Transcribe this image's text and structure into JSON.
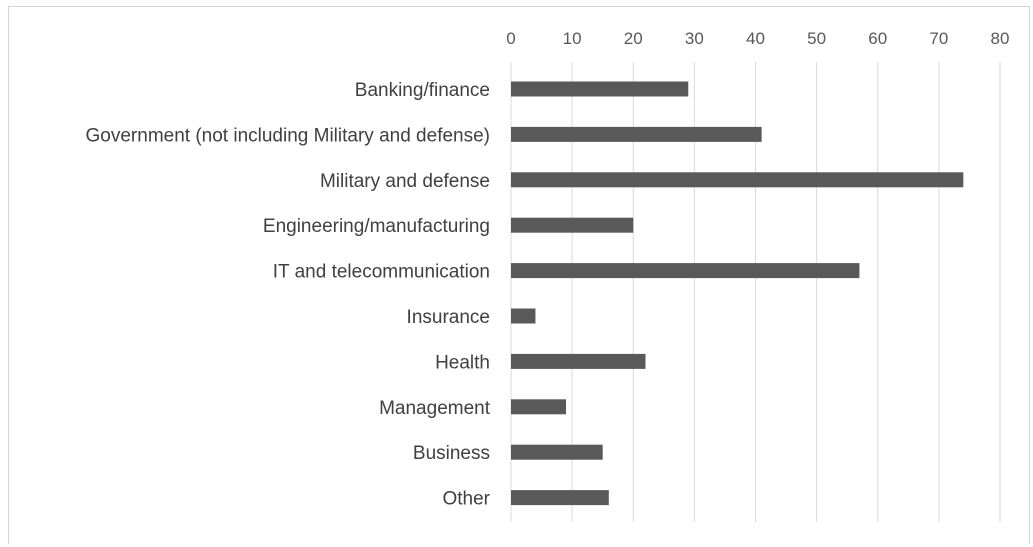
{
  "chart_data": {
    "type": "bar",
    "orientation": "horizontal",
    "title": "",
    "xlabel": "",
    "ylabel": "",
    "categories": [
      "Banking/finance",
      "Government (not including Military and defense)",
      "Military and defense",
      "Engineering/manufacturing",
      "IT and telecommunication",
      "Insurance",
      "Health",
      "Management",
      "Business",
      "Other"
    ],
    "values": [
      29,
      41,
      74,
      20,
      57,
      4,
      22,
      9,
      15,
      16
    ],
    "xlim": [
      0,
      80
    ],
    "xticks": [
      "0",
      "10",
      "20",
      "30",
      "40",
      "50",
      "60",
      "70",
      "80"
    ],
    "x_axis_position": "top",
    "grid": true,
    "legend": "none",
    "bar_color": "#595959",
    "grid_color": "#d9d9d9"
  }
}
